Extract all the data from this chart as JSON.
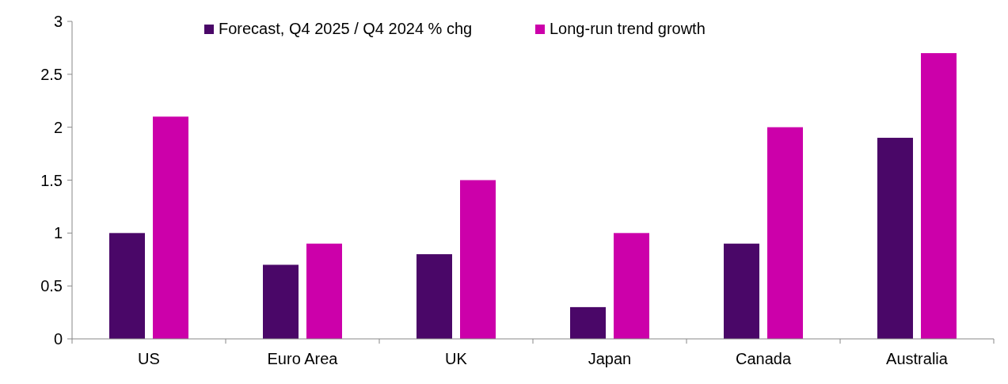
{
  "chart_data": {
    "type": "bar",
    "categories": [
      "US",
      "Euro Area",
      "UK",
      "Japan",
      "Canada",
      "Australia"
    ],
    "series": [
      {
        "name": "Forecast, Q4 2025 / Q4 2024 % chg",
        "color": "#4a0768",
        "values": [
          1.0,
          0.7,
          0.8,
          0.3,
          0.9,
          1.9
        ]
      },
      {
        "name": "Long-run trend growth",
        "color": "#cc00aa",
        "values": [
          2.1,
          0.9,
          1.5,
          1.0,
          2.0,
          2.7
        ]
      }
    ],
    "ylim": [
      0,
      3
    ],
    "yticks": [
      0,
      {
        "value": 0.5,
        "label": "0.5"
      },
      1,
      {
        "value": 1.5,
        "label": "1.5"
      },
      2,
      {
        "value": 2.5,
        "label": "2.5"
      },
      3
    ],
    "legend": "top",
    "grid": false
  }
}
